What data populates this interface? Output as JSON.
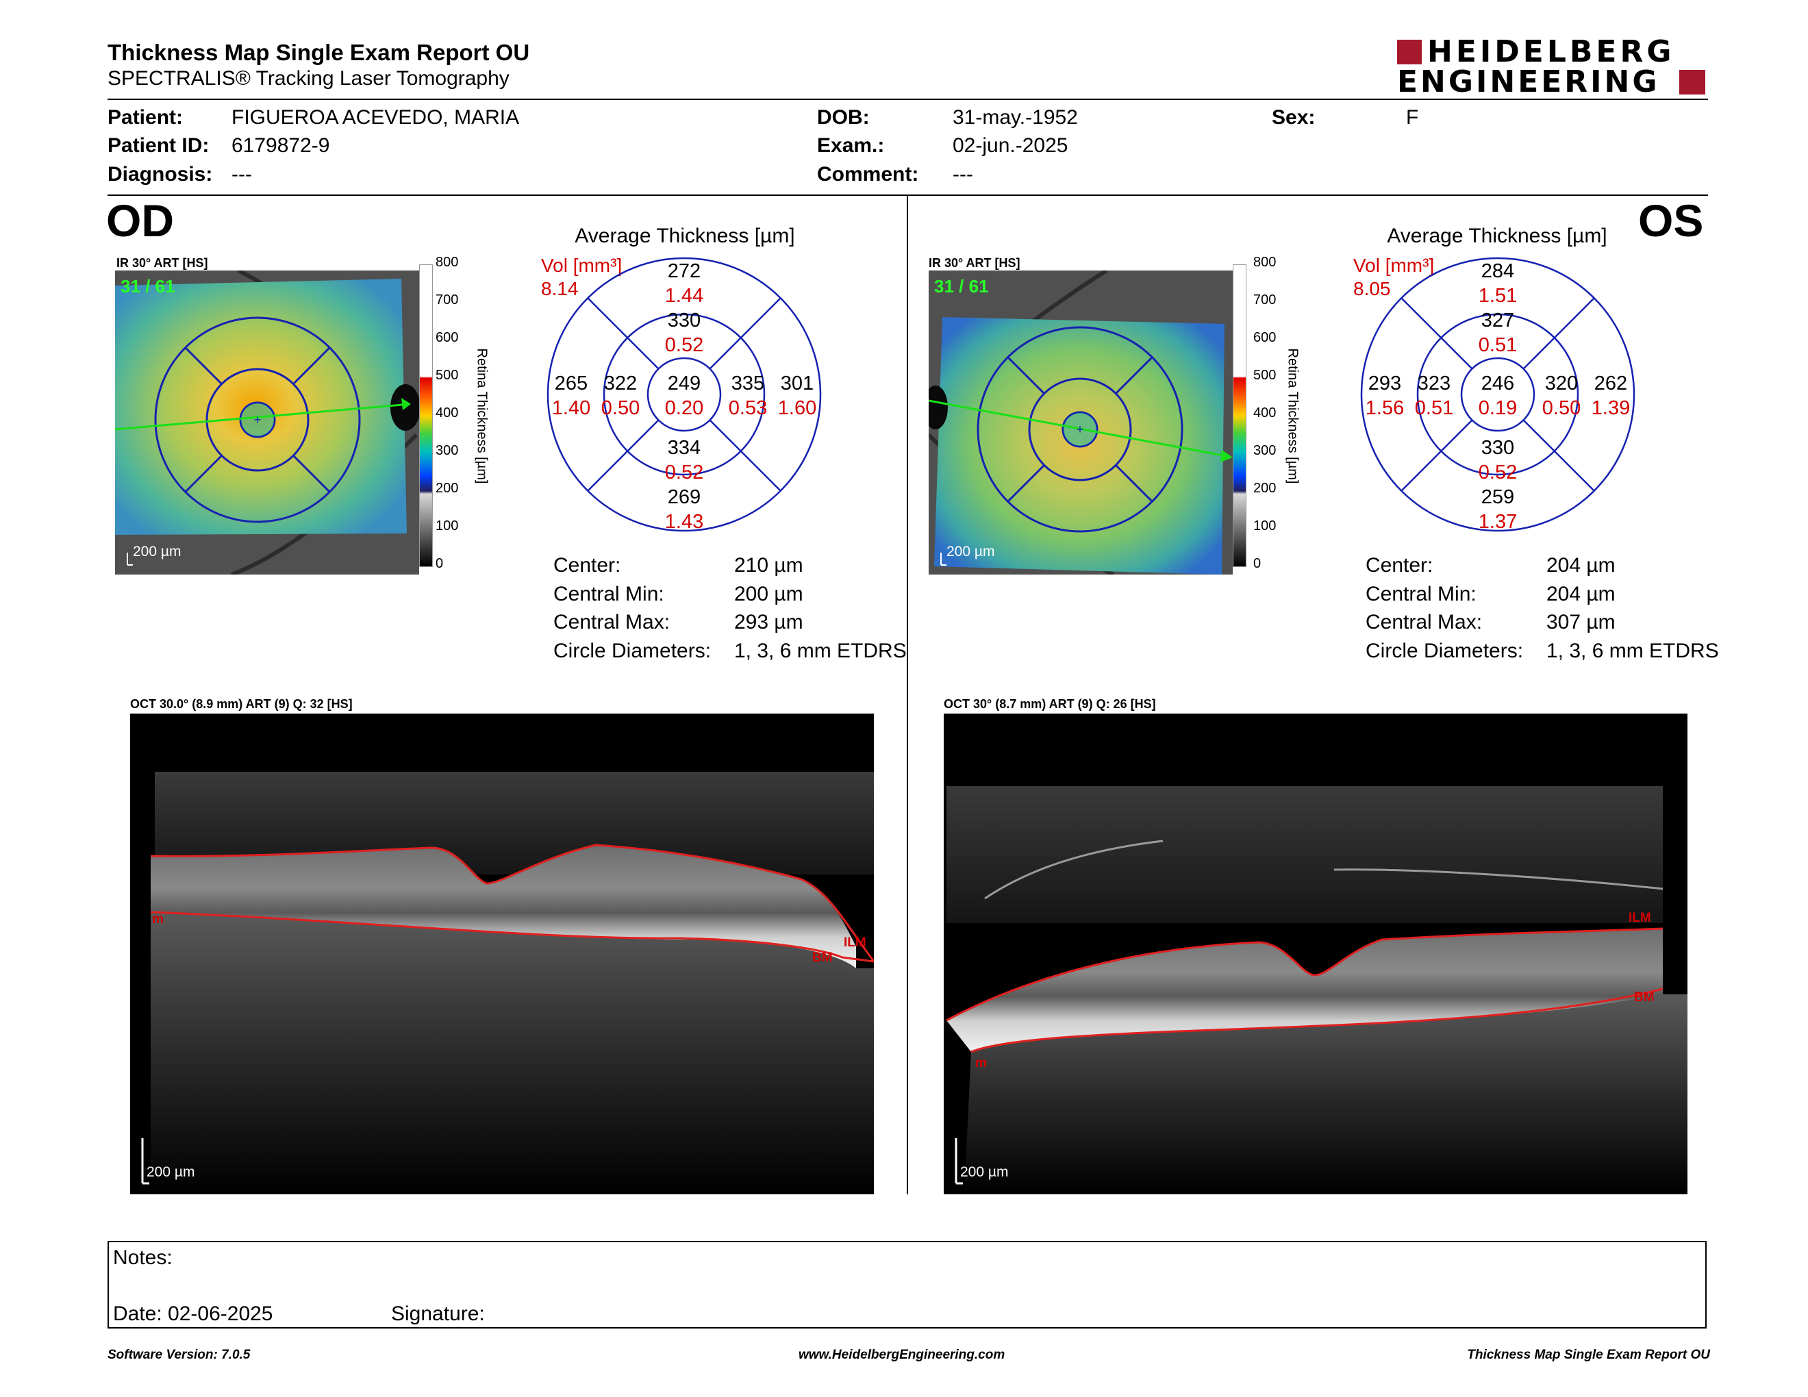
{
  "header": {
    "title": "Thickness Map Single Exam Report OU",
    "subtitle": "SPECTRALIS® Tracking Laser Tomography",
    "brand_line1": "HEIDELBERG",
    "brand_line2": "ENGINEERING",
    "brand_color": "#a6182c"
  },
  "patient": {
    "patient_label": "Patient:",
    "patient_value": "FIGUEROA ACEVEDO, MARIA",
    "id_label": "Patient ID:",
    "id_value": "6179872-9",
    "diagnosis_label": "Diagnosis:",
    "diagnosis_value": "---",
    "dob_label": "DOB:",
    "dob_value": "31-may.-1952",
    "exam_label": "Exam.:",
    "exam_value": "02-jun.-2025",
    "comment_label": "Comment:",
    "comment_value": "---",
    "sex_label": "Sex:",
    "sex_value": "F"
  },
  "scale": {
    "ticks": [
      "800",
      "700",
      "600",
      "500",
      "400",
      "300",
      "200",
      "100",
      "0"
    ],
    "axis_label": "Retina  Thickness [µm]"
  },
  "od": {
    "eye": "OD",
    "fundus_title": "IR 30° ART [HS]",
    "fundus_quality": "31 / 61",
    "scalebar": "200 µm",
    "avg_title": "Average Thickness [µm]",
    "vol_label": "Vol [mm³]",
    "vol_total": "8.14",
    "grid": {
      "outer_sup": "272",
      "outer_sup_vol": "1.44",
      "inner_sup": "330",
      "inner_sup_vol": "0.52",
      "outer_temp": "265",
      "outer_temp_vol": "1.40",
      "inner_temp": "322",
      "inner_temp_vol": "0.50",
      "center": "249",
      "center_vol": "0.20",
      "inner_nas": "335",
      "inner_nas_vol": "0.53",
      "outer_nas": "301",
      "outer_nas_vol": "1.60",
      "inner_inf": "334",
      "inner_inf_vol": "0.52",
      "outer_inf": "269",
      "outer_inf_vol": "1.43"
    },
    "stats": {
      "center_label": "Center:",
      "center_value": "210 µm",
      "min_label": "Central Min:",
      "min_value": "200 µm",
      "max_label": "Central Max:",
      "max_value": "293 µm",
      "diam_label": "Circle Diameters:",
      "diam_value": "1, 3, 6 mm ETDRS"
    },
    "oct_title": "OCT 30.0° (8.9 mm) ART (9) Q: 32 [HS]",
    "oct_scalebar": "200 µm",
    "labels": {
      "ilm": "ILM",
      "bm": "BM",
      "m": "m"
    }
  },
  "os": {
    "eye": "OS",
    "fundus_title": "IR 30° ART [HS]",
    "fundus_quality": "31 / 61",
    "scalebar": "200 µm",
    "avg_title": "Average Thickness [µm]",
    "vol_label": "Vol [mm³]",
    "vol_total": "8.05",
    "grid": {
      "outer_sup": "284",
      "outer_sup_vol": "1.51",
      "inner_sup": "327",
      "inner_sup_vol": "0.51",
      "outer_temp": "293",
      "outer_temp_vol": "1.56",
      "inner_temp": "323",
      "inner_temp_vol": "0.51",
      "center": "246",
      "center_vol": "0.19",
      "inner_nas": "320",
      "inner_nas_vol": "0.50",
      "outer_nas": "262",
      "outer_nas_vol": "1.39",
      "inner_inf": "330",
      "inner_inf_vol": "0.52",
      "outer_inf": "259",
      "outer_inf_vol": "1.37"
    },
    "stats": {
      "center_label": "Center:",
      "center_value": "204 µm",
      "min_label": "Central Min:",
      "min_value": "204 µm",
      "max_label": "Central Max:",
      "max_value": "307 µm",
      "diam_label": "Circle Diameters:",
      "diam_value": "1, 3, 6 mm ETDRS"
    },
    "oct_title": "OCT 30° (8.7 mm) ART (9) Q: 26 [HS]",
    "oct_scalebar": "200 µm",
    "labels": {
      "ilm": "ILM",
      "bm": "BM",
      "m": "m"
    }
  },
  "notes": {
    "notes_label": "Notes:",
    "date_label": "Date: 02-06-2025",
    "signature_label": "Signature:"
  },
  "footer": {
    "software": "Software Version: 7.0.5",
    "website": "www.HeidelbergEngineering.com",
    "report_name": "Thickness Map Single Exam Report OU"
  }
}
